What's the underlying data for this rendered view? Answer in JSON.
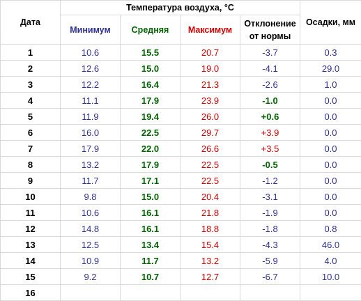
{
  "headers": {
    "date": "Дата",
    "air_temp": "Температура воздуха, °C",
    "min": "Минимум",
    "avg": "Средняя",
    "max": "Максимум",
    "deviation_line1": "Отклонение",
    "deviation_line2": "от нормы",
    "precip": "Осадки, мм"
  },
  "colors": {
    "min": "#2e3192",
    "avg": "#006400",
    "max": "#d40000",
    "precip": "#2e3192",
    "deviation_negative": "#2e3192",
    "deviation_positive": "#d40000",
    "deviation_small_positive": "#006400"
  },
  "rows": [
    {
      "day": "1",
      "min": "10.6",
      "avg": "15.5",
      "max": "20.7",
      "dev": "-3.7",
      "dev_type": "neg",
      "precip": "0.3"
    },
    {
      "day": "2",
      "min": "12.6",
      "avg": "15.0",
      "max": "19.0",
      "dev": "-4.1",
      "dev_type": "neg",
      "precip": "29.0"
    },
    {
      "day": "3",
      "min": "12.2",
      "avg": "16.4",
      "max": "21.3",
      "dev": "-2.6",
      "dev_type": "neg",
      "precip": "1.0"
    },
    {
      "day": "4",
      "min": "11.1",
      "avg": "17.9",
      "max": "23.9",
      "dev": "-1.0",
      "dev_type": "green",
      "precip": "0.0"
    },
    {
      "day": "5",
      "min": "11.9",
      "avg": "19.4",
      "max": "26.0",
      "dev": "+0.6",
      "dev_type": "green",
      "precip": "0.0"
    },
    {
      "day": "6",
      "min": "16.0",
      "avg": "22.5",
      "max": "29.7",
      "dev": "+3.9",
      "dev_type": "pos",
      "precip": "0.0"
    },
    {
      "day": "7",
      "min": "17.9",
      "avg": "22.0",
      "max": "26.6",
      "dev": "+3.5",
      "dev_type": "pos",
      "precip": "0.0"
    },
    {
      "day": "8",
      "min": "13.2",
      "avg": "17.9",
      "max": "22.5",
      "dev": "-0.5",
      "dev_type": "green",
      "precip": "0.0"
    },
    {
      "day": "9",
      "min": "11.7",
      "avg": "17.1",
      "max": "22.5",
      "dev": "-1.2",
      "dev_type": "neg",
      "precip": "0.0"
    },
    {
      "day": "10",
      "min": "9.8",
      "avg": "15.0",
      "max": "20.4",
      "dev": "-3.1",
      "dev_type": "neg",
      "precip": "0.0"
    },
    {
      "day": "11",
      "min": "10.6",
      "avg": "16.1",
      "max": "21.8",
      "dev": "-1.9",
      "dev_type": "neg",
      "precip": "0.0"
    },
    {
      "day": "12",
      "min": "14.8",
      "avg": "16.1",
      "max": "18.8",
      "dev": "-1.8",
      "dev_type": "neg",
      "precip": "0.8"
    },
    {
      "day": "13",
      "min": "12.5",
      "avg": "13.4",
      "max": "15.4",
      "dev": "-4.3",
      "dev_type": "neg",
      "precip": "46.0"
    },
    {
      "day": "14",
      "min": "10.9",
      "avg": "11.7",
      "max": "13.2",
      "dev": "-5.9",
      "dev_type": "neg",
      "precip": "4.0"
    },
    {
      "day": "15",
      "min": "9.2",
      "avg": "10.7",
      "max": "12.7",
      "dev": "-6.7",
      "dev_type": "neg",
      "precip": "10.0"
    },
    {
      "day": "16",
      "min": "",
      "avg": "",
      "max": "",
      "dev": "",
      "dev_type": "neg",
      "precip": ""
    }
  ]
}
